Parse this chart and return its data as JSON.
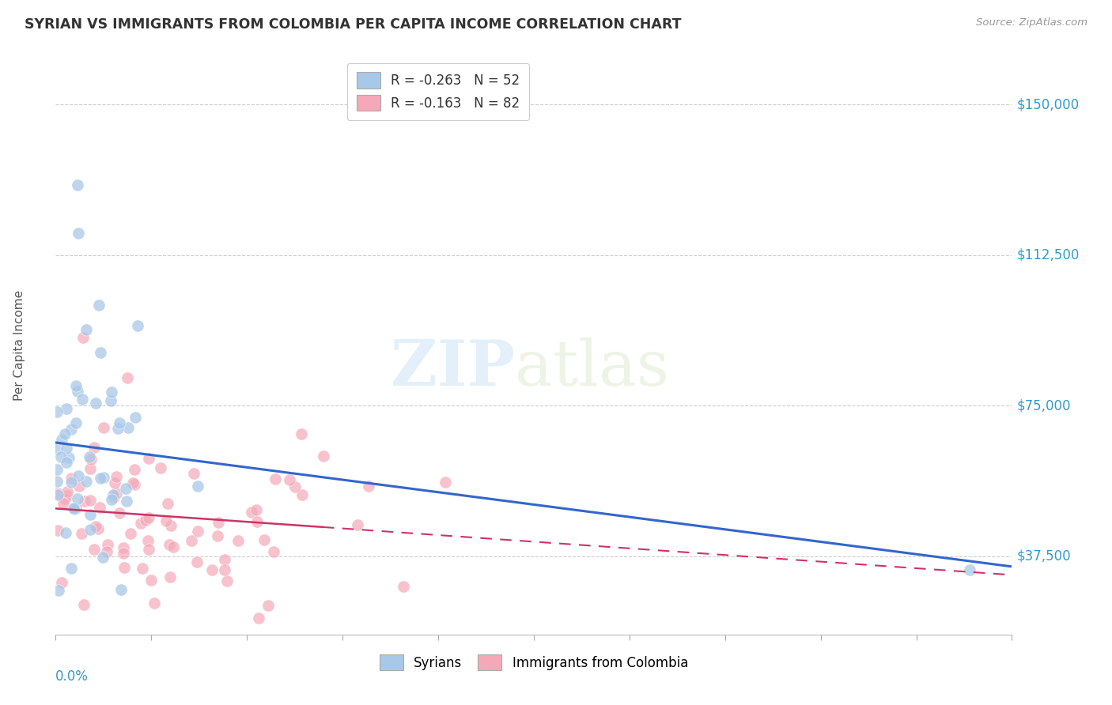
{
  "title": "SYRIAN VS IMMIGRANTS FROM COLOMBIA PER CAPITA INCOME CORRELATION CHART",
  "source": "Source: ZipAtlas.com",
  "ylabel": "Per Capita Income",
  "xlim": [
    0.0,
    0.5
  ],
  "ylim": [
    18000,
    162000
  ],
  "yticks": [
    37500,
    75000,
    112500,
    150000
  ],
  "ytick_labels": [
    "$37,500",
    "$75,000",
    "$112,500",
    "$150,000"
  ],
  "watermark_zip": "ZIP",
  "watermark_atlas": "atlas",
  "syrian_color": "#a8c8e8",
  "colombia_color": "#f4a8b8",
  "syrian_line_color": "#3366cc",
  "colombia_line_color": "#cc3366",
  "bg_color": "#ffffff",
  "grid_color": "#cccccc",
  "axis_label_color": "#3399cc",
  "title_color": "#333333",
  "legend1_label": "R = -0.263   N = 52",
  "legend2_label": "R = -0.163   N = 82",
  "legend_label1": "Syrians",
  "legend_label2": "Immigrants from Colombia",
  "syr_seed": 7,
  "col_seed": 13
}
